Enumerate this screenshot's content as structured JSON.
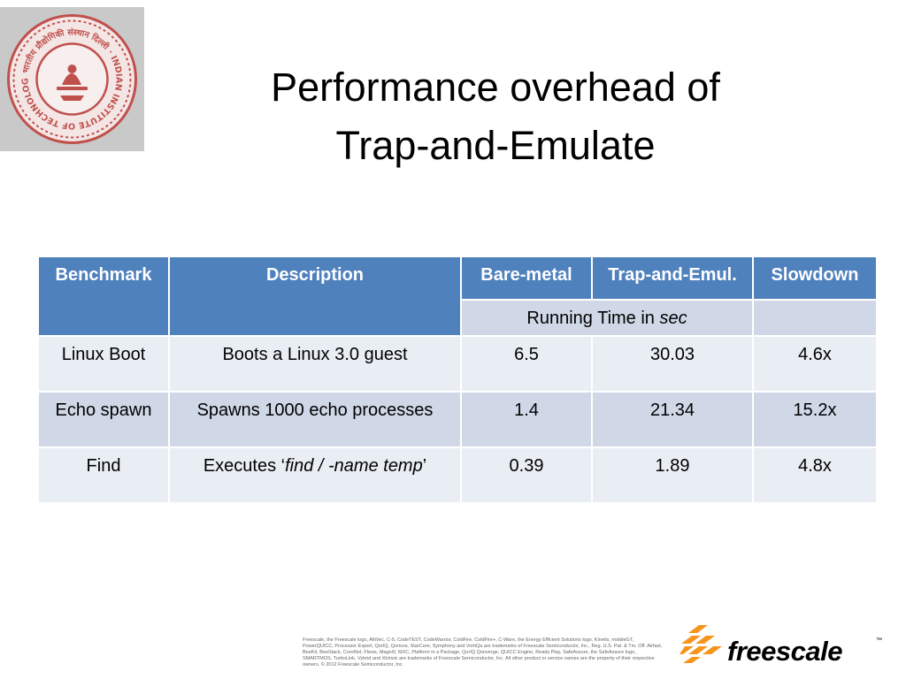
{
  "slide": {
    "title_line1": "Performance overhead of",
    "title_line2": "Trap-and-Emulate",
    "logo": {
      "icon": "iit-delhi-seal-icon",
      "seal_text": "भारतीय प्रौद्योगिकी संस्थान दिल्ली · INDIAN INSTITUTE OF TECHNOLOGY DELHI"
    }
  },
  "table": {
    "headers": [
      "Benchmark",
      "Description",
      "Bare-metal",
      "Trap-and-Emul.",
      "Slowdown"
    ],
    "units_prefix": "Running Time in ",
    "units_emph": "sec",
    "rows": [
      {
        "benchmark": "Linux Boot",
        "description": "Boots a Linux 3.0 guest",
        "description_prefix": "",
        "description_emph": "",
        "description_suffix": "",
        "bare_metal": "6.5",
        "trap_emul": "30.03",
        "slowdown": "4.6x"
      },
      {
        "benchmark": "Echo spawn",
        "description": "Spawns 1000 echo processes",
        "description_prefix": "",
        "description_emph": "",
        "description_suffix": "",
        "bare_metal": "1.4",
        "trap_emul": "21.34",
        "slowdown": "15.2x"
      },
      {
        "benchmark": "Find",
        "description": "",
        "description_prefix": "Executes ‘",
        "description_emph": "find / -name temp",
        "description_suffix": "’",
        "bare_metal": "0.39",
        "trap_emul": "1.89",
        "slowdown": "4.8x"
      }
    ]
  },
  "footer": {
    "fine_print": "Freescale, the Freescale logo, AltiVec, C-5, CodeTEST, CodeWarrior, ColdFire, ColdFire+, C-Ware, the Energy Efficient Solutions logo, Kinetis, mobileGT, PowerQUICC, Processor Expert, QorIQ, Qorivva, StarCore, Symphony and VortiQa are trademarks of Freescale Semiconductor, Inc., Reg. U.S. Pat. & Tm. Off. Airfast, BeeKit, BeeStack, CoreNet, Flexis, MagniV, MXC, Platform in a Package, QorIQ Qonverge, QUICC Engine, Ready Play, SafeAssure, the SafeAssure logo, SMARTMOS, TurboLink, Vybrid and Xtrinsic are trademarks of Freescale Semiconductor, Inc. All other product or service names are the property of their respective owners. © 2012 Freescale Semiconductor, Inc.",
    "brand": "freescale",
    "brand_tm": "™",
    "brand_icon": "freescale-chevrons-icon"
  },
  "colors": {
    "header_bg": "#4f81bd",
    "row_light": "#e9edf4",
    "row_dark": "#d0d8e8",
    "seal_red": "#c0504d",
    "brand_orange": "#f7941d"
  }
}
